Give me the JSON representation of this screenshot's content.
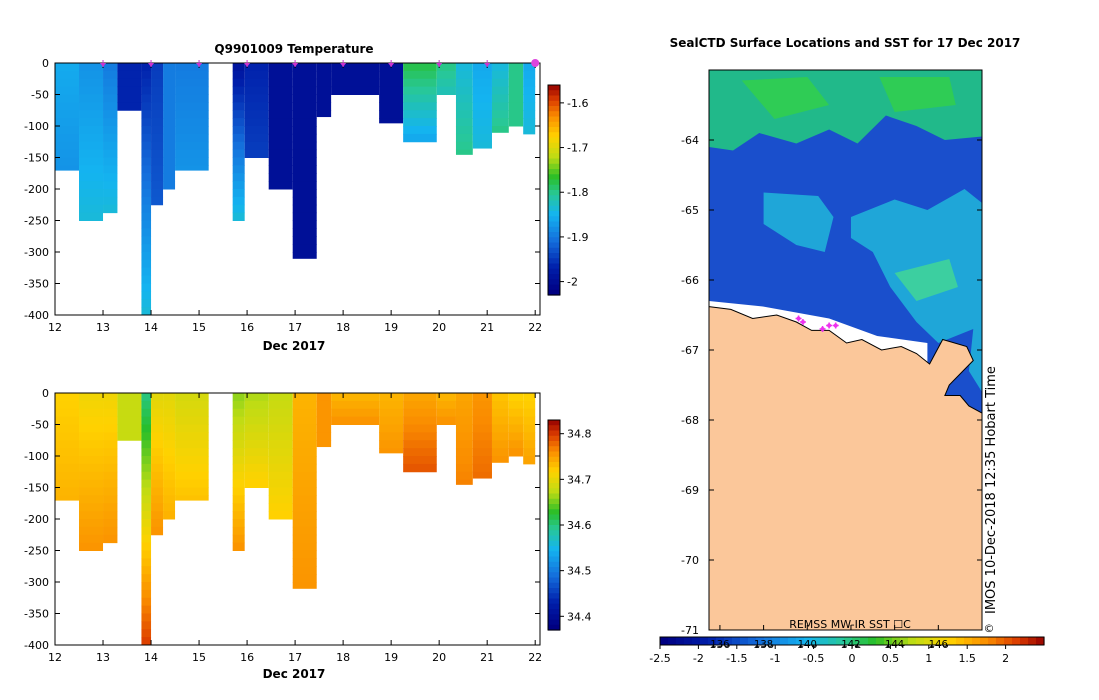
{
  "chart_data": [
    {
      "type": "heatmap",
      "title": "Q9901009  Temperature",
      "xlabel": "Dec 2017",
      "ylabel": "",
      "xlim": [
        12,
        22.1
      ],
      "ylim": [
        -400,
        0
      ],
      "xticks": [
        "12",
        "13",
        "14",
        "15",
        "16",
        "17",
        "18",
        "19",
        "20",
        "21",
        "22"
      ],
      "yticks": [
        "0",
        "-50",
        "-100",
        "-150",
        "-200",
        "-250",
        "-300",
        "-350",
        "-400"
      ],
      "profile_days": [
        12.0,
        12.5,
        13.0,
        13.3,
        13.8,
        14.0,
        14.25,
        14.5,
        15.2,
        15.7,
        15.95,
        16.45,
        16.95,
        17.45,
        17.75,
        18.2,
        18.75,
        19.25,
        19.95,
        20.35,
        20.7,
        21.1,
        21.45,
        21.75
      ],
      "profiles": [
        {
          "day": 12.0,
          "depth": 170,
          "top": -1.86,
          "bottom": -1.88
        },
        {
          "day": 12.5,
          "depth": 250,
          "top": -1.88,
          "bottom": -1.84
        },
        {
          "day": 13.0,
          "depth": 240,
          "top": -1.9,
          "bottom": -1.84
        },
        {
          "day": 13.3,
          "depth": 80,
          "top": -1.97,
          "bottom": -1.97
        },
        {
          "day": 13.8,
          "depth": 400,
          "top": -1.97,
          "bottom": -1.84
        },
        {
          "day": 14.0,
          "depth": 230,
          "top": -1.95,
          "bottom": -1.93
        },
        {
          "day": 14.25,
          "depth": 200,
          "top": -1.9,
          "bottom": -1.9
        },
        {
          "day": 14.5,
          "depth": 170,
          "top": -1.9,
          "bottom": -1.88
        },
        {
          "day": 15.7,
          "depth": 255,
          "top": -1.99,
          "bottom": -1.84
        },
        {
          "day": 15.95,
          "depth": 150,
          "top": -1.97,
          "bottom": -1.95
        },
        {
          "day": 16.45,
          "depth": 200,
          "top": -2.0,
          "bottom": -2.0
        },
        {
          "day": 16.95,
          "depth": 310,
          "top": -2.0,
          "bottom": -2.0
        },
        {
          "day": 17.45,
          "depth": 85,
          "top": -2.0,
          "bottom": -2.0
        },
        {
          "day": 17.75,
          "depth": 50,
          "top": -2.0,
          "bottom": -2.0
        },
        {
          "day": 18.75,
          "depth": 95,
          "top": -2.0,
          "bottom": -2.0
        },
        {
          "day": 19.25,
          "depth": 130,
          "top": -1.78,
          "bottom": -1.86
        },
        {
          "day": 19.95,
          "depth": 50,
          "top": -1.8,
          "bottom": -1.82
        },
        {
          "day": 20.35,
          "depth": 145,
          "top": -1.84,
          "bottom": -1.8
        },
        {
          "day": 20.7,
          "depth": 135,
          "top": -1.86,
          "bottom": -1.84
        },
        {
          "day": 21.1,
          "depth": 110,
          "top": -1.84,
          "bottom": -1.8
        },
        {
          "day": 21.45,
          "depth": 105,
          "top": -1.8,
          "bottom": -1.8
        },
        {
          "day": 21.75,
          "depth": 115,
          "top": -1.86,
          "bottom": -1.84
        }
      ],
      "colorbar": {
        "min": -2.03,
        "max": -1.56,
        "ticks": [
          "-1.6",
          "-1.7",
          "-1.8",
          "-1.9",
          "-2"
        ]
      }
    },
    {
      "type": "heatmap",
      "title": "",
      "xlabel": "Dec 2017",
      "ylabel": "",
      "xlim": [
        12,
        22.1
      ],
      "ylim": [
        -400,
        0
      ],
      "xticks": [
        "12",
        "13",
        "14",
        "15",
        "16",
        "17",
        "18",
        "19",
        "20",
        "21",
        "22"
      ],
      "yticks": [
        "0",
        "-50",
        "-100",
        "-150",
        "-200",
        "-250",
        "-300",
        "-350",
        "-400"
      ],
      "profiles": [
        {
          "day": 12.0,
          "depth": 170,
          "top": 34.72,
          "bottom": 34.74
        },
        {
          "day": 12.5,
          "depth": 250,
          "top": 34.71,
          "bottom": 34.76
        },
        {
          "day": 13.0,
          "depth": 240,
          "top": 34.71,
          "bottom": 34.76
        },
        {
          "day": 13.3,
          "depth": 80,
          "top": 34.68,
          "bottom": 34.68
        },
        {
          "day": 13.8,
          "depth": 400,
          "top": 34.6,
          "bottom": 34.8
        },
        {
          "day": 14.0,
          "depth": 230,
          "top": 34.7,
          "bottom": 34.76
        },
        {
          "day": 14.25,
          "depth": 200,
          "top": 34.7,
          "bottom": 34.74
        },
        {
          "day": 14.5,
          "depth": 170,
          "top": 34.69,
          "bottom": 34.73
        },
        {
          "day": 15.7,
          "depth": 255,
          "top": 34.66,
          "bottom": 34.76
        },
        {
          "day": 15.95,
          "depth": 150,
          "top": 34.67,
          "bottom": 34.72
        },
        {
          "day": 16.45,
          "depth": 200,
          "top": 34.68,
          "bottom": 34.72
        },
        {
          "day": 16.95,
          "depth": 310,
          "top": 34.74,
          "bottom": 34.76
        },
        {
          "day": 17.45,
          "depth": 85,
          "top": 34.76,
          "bottom": 34.76
        },
        {
          "day": 17.75,
          "depth": 50,
          "top": 34.74,
          "bottom": 34.76
        },
        {
          "day": 18.75,
          "depth": 95,
          "top": 34.74,
          "bottom": 34.76
        },
        {
          "day": 19.25,
          "depth": 130,
          "top": 34.75,
          "bottom": 34.79
        },
        {
          "day": 19.95,
          "depth": 50,
          "top": 34.74,
          "bottom": 34.76
        },
        {
          "day": 20.35,
          "depth": 145,
          "top": 34.75,
          "bottom": 34.77
        },
        {
          "day": 20.7,
          "depth": 135,
          "top": 34.76,
          "bottom": 34.78
        },
        {
          "day": 21.1,
          "depth": 110,
          "top": 34.73,
          "bottom": 34.76
        },
        {
          "day": 21.45,
          "depth": 105,
          "top": 34.72,
          "bottom": 34.76
        },
        {
          "day": 21.75,
          "depth": 115,
          "top": 34.72,
          "bottom": 34.75
        }
      ],
      "colorbar": {
        "min": 34.37,
        "max": 34.83,
        "ticks": [
          "34.8",
          "34.7",
          "34.6",
          "34.5",
          "34.4"
        ]
      }
    },
    {
      "type": "heatmap",
      "title": "SealCTD Surface Locations and SST for 17 Dec 2017",
      "xlabel": "REMSS MW-IR SST ☐C",
      "xlim": [
        135.5,
        148.0
      ],
      "ylim": [
        -71,
        -63
      ],
      "lon_ticks": [
        "136",
        "138",
        "140",
        "142",
        "144",
        "146"
      ],
      "lat_ticks": [
        "-64",
        "-65",
        "-66",
        "-67",
        "-68",
        "-69",
        "-70",
        "-71"
      ],
      "colorbar": {
        "min": -2.5,
        "max": 2.5,
        "ticks": [
          "-2.5",
          "-2",
          "-1.5",
          "-1",
          "-0.5",
          "0",
          "0.5",
          "1",
          "1.5",
          "2"
        ]
      },
      "locations": [
        {
          "lon": 139.6,
          "lat": -66.55
        },
        {
          "lon": 139.8,
          "lat": -66.6
        },
        {
          "lon": 141.0,
          "lat": -66.65
        },
        {
          "lon": 141.3,
          "lat": -66.65
        },
        {
          "lon": 140.7,
          "lat": -66.7
        }
      ],
      "credit": "IMOS 10-Dec-2018 12:35 Hobart Time",
      "copyright": "©"
    }
  ]
}
